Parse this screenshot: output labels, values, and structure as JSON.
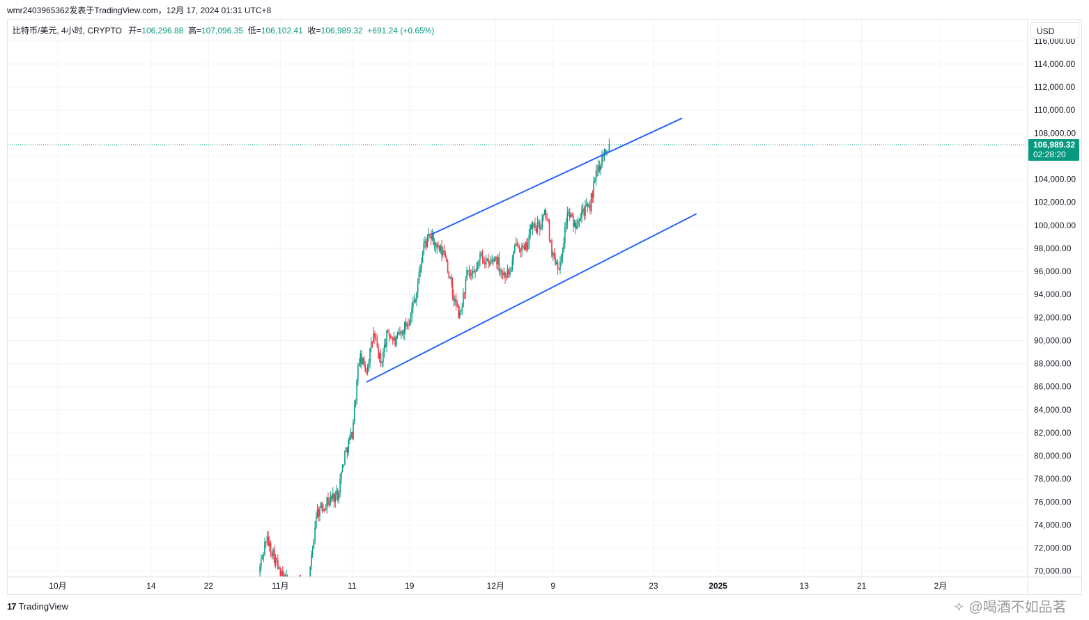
{
  "header": {
    "publisher": "wmr2403965362发表于TradingView.com，12月 17, 2024 01:31 UTC+8"
  },
  "legend": {
    "symbol": "比特币/美元, 4小时, CRYPTO",
    "open_label": "开=",
    "open_value": "106,296.88",
    "high_label": "高=",
    "high_value": "107,096.35",
    "low_label": "低=",
    "low_value": "106,102.41",
    "close_label": "收=",
    "close_value": "106,989.32",
    "change": "+691.24 (+0.65%)"
  },
  "currency_button": "USD",
  "price_tag": {
    "price": "106,989.32",
    "countdown": "02:28:20"
  },
  "footer": {
    "brand_logo": "17",
    "brand_name": "TradingView",
    "watermark": "✧ @喝酒不如品茗"
  },
  "colors": {
    "up": "#089981",
    "down": "#f23645",
    "channel": "#2962ff",
    "price_line": "#089981",
    "grid": "#f0f3fa"
  },
  "chart_data": {
    "type": "candlestick",
    "title": "",
    "y_ticks": [
      "70,000.00",
      "72,000.00",
      "74,000.00",
      "76,000.00",
      "78,000.00",
      "80,000.00",
      "82,000.00",
      "84,000.00",
      "86,000.00",
      "88,000.00",
      "90,000.00",
      "92,000.00",
      "94,000.00",
      "96,000.00",
      "98,000.00",
      "100,000.00",
      "102,000.00",
      "104,000.00",
      "106,000.00",
      "108,000.00",
      "110,000.00",
      "112,000.00",
      "114,000.00",
      "116,000.00"
    ],
    "y_tick_values": [
      70000,
      72000,
      74000,
      76000,
      78000,
      80000,
      82000,
      84000,
      86000,
      88000,
      90000,
      92000,
      94000,
      96000,
      98000,
      100000,
      102000,
      104000,
      106000,
      108000,
      110000,
      112000,
      114000,
      116000
    ],
    "ylim": [
      69500,
      117800
    ],
    "x_ticks": [
      {
        "label": "10月",
        "date": "2024-10-01"
      },
      {
        "label": "14",
        "date": "2024-10-14"
      },
      {
        "label": "22",
        "date": "2024-10-22"
      },
      {
        "label": "11月",
        "date": "2024-11-01"
      },
      {
        "label": "11",
        "date": "2024-11-11"
      },
      {
        "label": "19",
        "date": "2024-11-19"
      },
      {
        "label": "12月",
        "date": "2024-12-01"
      },
      {
        "label": "9",
        "date": "2024-12-09"
      },
      {
        "label": "23",
        "date": "2024-12-23"
      },
      {
        "label": "2025",
        "date": "2025-01-01"
      },
      {
        "label": "13",
        "date": "2025-01-13"
      },
      {
        "label": "21",
        "date": "2025-01-21"
      },
      {
        "label": "2月",
        "date": "2025-02-01"
      }
    ],
    "last_price": 106989.32,
    "channel_lines": [
      {
        "name": "upper",
        "start": {
          "date": "2024-11-22",
          "price": 99200
        },
        "end": {
          "date": "2024-12-27",
          "price": 109300
        }
      },
      {
        "name": "lower",
        "start": {
          "date": "2024-11-13",
          "price": 86400
        },
        "end": {
          "date": "2024-12-29",
          "price": 101000
        }
      }
    ],
    "price_path": [
      {
        "date": "2024-10-29",
        "price": 69800
      },
      {
        "date": "2024-10-30",
        "price": 72800
      },
      {
        "date": "2024-10-31",
        "price": 71600
      },
      {
        "date": "2024-11-01",
        "price": 69600
      },
      {
        "date": "2024-11-03",
        "price": 68500
      },
      {
        "date": "2024-11-05",
        "price": 68900
      },
      {
        "date": "2024-11-06",
        "price": 75000
      },
      {
        "date": "2024-11-08",
        "price": 76300
      },
      {
        "date": "2024-11-09",
        "price": 76700
      },
      {
        "date": "2024-11-10",
        "price": 80200
      },
      {
        "date": "2024-11-11",
        "price": 82000
      },
      {
        "date": "2024-11-12",
        "price": 88500
      },
      {
        "date": "2024-11-13",
        "price": 87500
      },
      {
        "date": "2024-11-14",
        "price": 90500
      },
      {
        "date": "2024-11-15",
        "price": 88000
      },
      {
        "date": "2024-11-16",
        "price": 90800
      },
      {
        "date": "2024-11-17",
        "price": 89800
      },
      {
        "date": "2024-11-18",
        "price": 90800
      },
      {
        "date": "2024-11-19",
        "price": 92000
      },
      {
        "date": "2024-11-20",
        "price": 94300
      },
      {
        "date": "2024-11-21",
        "price": 98300
      },
      {
        "date": "2024-11-22",
        "price": 99000
      },
      {
        "date": "2024-11-23",
        "price": 97800
      },
      {
        "date": "2024-11-24",
        "price": 97500
      },
      {
        "date": "2024-11-25",
        "price": 94000
      },
      {
        "date": "2024-11-26",
        "price": 92000
      },
      {
        "date": "2024-11-27",
        "price": 95700
      },
      {
        "date": "2024-11-28",
        "price": 95500
      },
      {
        "date": "2024-11-29",
        "price": 97500
      },
      {
        "date": "2024-11-30",
        "price": 96500
      },
      {
        "date": "2024-12-01",
        "price": 97300
      },
      {
        "date": "2024-12-02",
        "price": 95800
      },
      {
        "date": "2024-12-03",
        "price": 95900
      },
      {
        "date": "2024-12-04",
        "price": 98700
      },
      {
        "date": "2024-12-05",
        "price": 97600
      },
      {
        "date": "2024-12-06",
        "price": 99900
      },
      {
        "date": "2024-12-07",
        "price": 99800
      },
      {
        "date": "2024-12-08",
        "price": 101100
      },
      {
        "date": "2024-12-09",
        "price": 97300
      },
      {
        "date": "2024-12-10",
        "price": 96500
      },
      {
        "date": "2024-12-11",
        "price": 101200
      },
      {
        "date": "2024-12-12",
        "price": 100000
      },
      {
        "date": "2024-12-13",
        "price": 101400
      },
      {
        "date": "2024-12-14",
        "price": 101300
      },
      {
        "date": "2024-12-15",
        "price": 104300
      },
      {
        "date": "2024-12-16",
        "price": 106300
      },
      {
        "date": "2024-12-16T20:00",
        "price": 106989
      }
    ]
  }
}
